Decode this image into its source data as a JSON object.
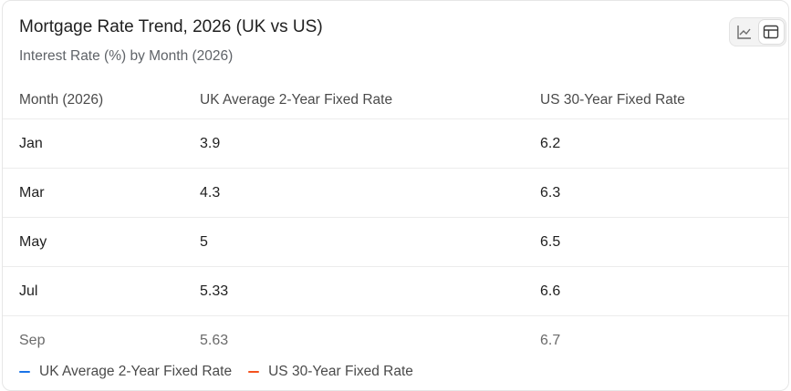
{
  "header": {
    "title": "Mortgage Rate Trend, 2026 (UK vs US)",
    "subtitle": "Interest Rate (%) by Month (2026)"
  },
  "view_toggle": {
    "options": [
      {
        "icon": "line-chart-icon",
        "active": false
      },
      {
        "icon": "table-icon",
        "active": true
      }
    ]
  },
  "table": {
    "columns": [
      "Month (2026)",
      "UK Average 2-Year Fixed Rate",
      "US 30-Year Fixed Rate"
    ],
    "rows": [
      [
        "Jan",
        "3.9",
        "6.2"
      ],
      [
        "Mar",
        "4.3",
        "6.3"
      ],
      [
        "May",
        "5",
        "6.5"
      ],
      [
        "Jul",
        "5.33",
        "6.6"
      ],
      [
        "Sep",
        "5.63",
        "6.7"
      ]
    ]
  },
  "legend": [
    {
      "label": "UK Average 2-Year Fixed Rate",
      "color": "#1a73e8"
    },
    {
      "label": "US 30-Year Fixed Rate",
      "color": "#f4511e"
    }
  ],
  "chart_data": {
    "type": "table",
    "title": "Mortgage Rate Trend, 2026 (UK vs US)",
    "subtitle": "Interest Rate (%) by Month (2026)",
    "categories": [
      "Jan",
      "Mar",
      "May",
      "Jul",
      "Sep"
    ],
    "series": [
      {
        "name": "UK Average 2-Year Fixed Rate",
        "values": [
          3.9,
          4.3,
          5,
          5.33,
          5.63
        ],
        "color": "#1a73e8"
      },
      {
        "name": "US 30-Year Fixed Rate",
        "values": [
          6.2,
          6.3,
          6.5,
          6.6,
          6.7
        ],
        "color": "#f4511e"
      }
    ]
  }
}
